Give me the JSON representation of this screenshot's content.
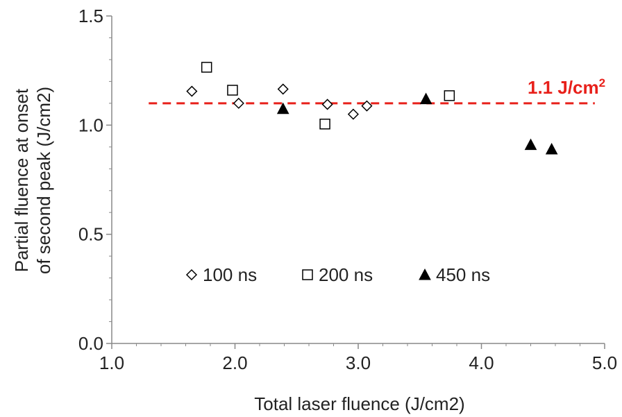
{
  "chart_data": {
    "type": "scatter",
    "xlabel": "Total laser fluence  (J/cm2)",
    "ylabel_line1": "Partial fluence at onset",
    "ylabel_line2": "of second peak  (J/cm2)",
    "xlim": [
      1.0,
      5.0
    ],
    "ylim": [
      0.0,
      1.5
    ],
    "x_ticks": [
      "1.0",
      "2.0",
      "3.0",
      "4.0",
      "5.0"
    ],
    "y_ticks": [
      "0.0",
      "0.5",
      "1.0",
      "1.5"
    ],
    "grid": false,
    "legend_position": "lower-left",
    "series": [
      {
        "name": "100 ns",
        "marker": "diamond-open",
        "color": "#000000",
        "points": [
          [
            1.65,
            1.155
          ],
          [
            2.03,
            1.1
          ],
          [
            2.39,
            1.165
          ],
          [
            2.75,
            1.095
          ],
          [
            2.96,
            1.05
          ],
          [
            3.07,
            1.088
          ]
        ]
      },
      {
        "name": "200 ns",
        "marker": "square-open",
        "color": "#000000",
        "points": [
          [
            1.77,
            1.265
          ],
          [
            1.98,
            1.16
          ],
          [
            2.73,
            1.005
          ],
          [
            3.74,
            1.135
          ]
        ]
      },
      {
        "name": "450 ns",
        "marker": "triangle-filled",
        "color": "#000000",
        "points": [
          [
            2.39,
            1.075
          ],
          [
            3.55,
            1.12
          ],
          [
            4.4,
            0.91
          ],
          [
            4.57,
            0.89
          ]
        ]
      }
    ],
    "reference_line": {
      "y": 1.1,
      "x_start": 1.3,
      "x_end": 4.92,
      "style": "dashed",
      "color": "#e8201a",
      "label_prefix": "1.1 J/cm",
      "label_sup": "2"
    }
  }
}
